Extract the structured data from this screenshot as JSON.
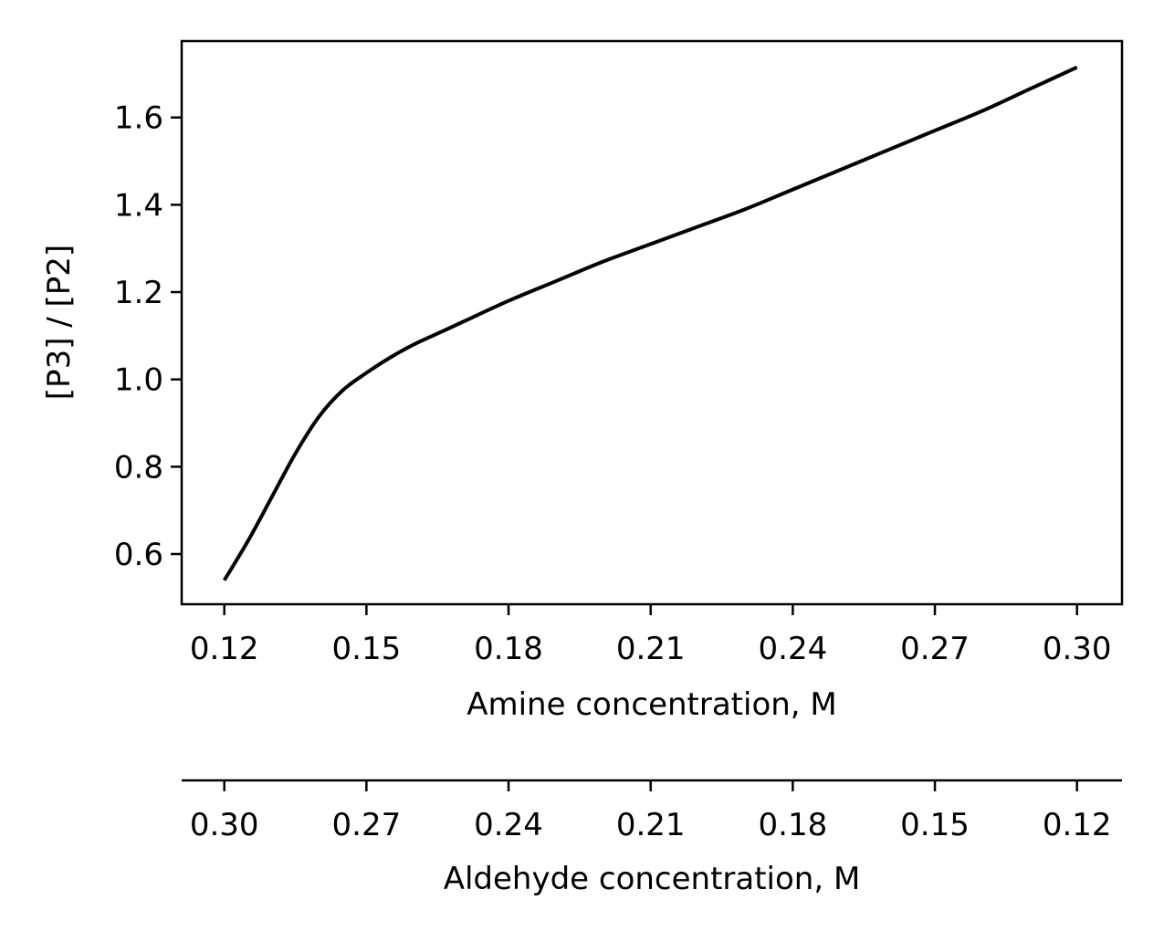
{
  "chart_data": {
    "type": "line",
    "title": "",
    "xlabel": "Amine concentration, M",
    "ylabel": "[P3] / [P2]",
    "secondary_xlabel": "Aldehyde concentration, M",
    "xlim": [
      0.111,
      0.3095
    ],
    "ylim": [
      0.485,
      1.775
    ],
    "xticks": [
      0.12,
      0.15,
      0.18,
      0.21,
      0.24,
      0.27,
      0.3
    ],
    "xtick_labels": [
      "0.12",
      "0.15",
      "0.18",
      "0.21",
      "0.24",
      "0.27",
      "0.30"
    ],
    "yticks": [
      0.6,
      0.8,
      1.0,
      1.2,
      1.4,
      1.6
    ],
    "ytick_labels": [
      "0.6",
      "0.8",
      "1.0",
      "1.2",
      "1.4",
      "1.6"
    ],
    "secondary_xtick_labels": [
      "0.30",
      "0.27",
      "0.24",
      "0.21",
      "0.18",
      "0.15",
      "0.12"
    ],
    "grid": false,
    "line_color": "#000000",
    "series": [
      {
        "x": [
          0.12,
          0.125,
          0.13,
          0.135,
          0.14,
          0.145,
          0.15,
          0.155,
          0.16,
          0.165,
          0.17,
          0.18,
          0.19,
          0.2,
          0.21,
          0.22,
          0.23,
          0.24,
          0.25,
          0.26,
          0.27,
          0.28,
          0.29,
          0.3
        ],
        "values": [
          0.54,
          0.63,
          0.73,
          0.83,
          0.915,
          0.975,
          1.015,
          1.05,
          1.08,
          1.105,
          1.13,
          1.18,
          1.225,
          1.27,
          1.31,
          1.35,
          1.39,
          1.435,
          1.48,
          1.525,
          1.57,
          1.615,
          1.665,
          1.715
        ]
      }
    ]
  }
}
